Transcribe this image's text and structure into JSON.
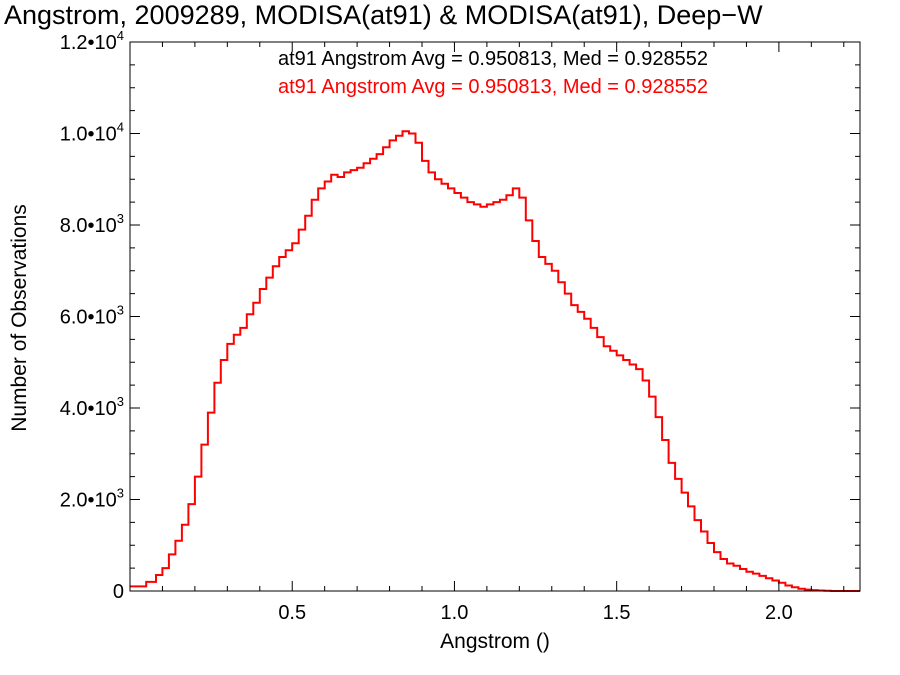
{
  "title": "Angstrom, 2009289, MODISA(at91) & MODISA(at91), Deep−W",
  "colors": {
    "series_black": "#000000",
    "series_red": "#ff0000",
    "axes": "#000000",
    "background": "#ffffff"
  },
  "chart_data": {
    "type": "line",
    "style": "step",
    "title": "Angstrom, 2009289, MODISA(at91) & MODISA(at91), Deep−W",
    "xlabel": "Angstrom ()",
    "ylabel": "Number of Observations",
    "xlim": [
      0.0,
      2.25
    ],
    "ylim": [
      0,
      12000
    ],
    "grid": false,
    "legend_placement": "top-right",
    "x_ticks": [
      {
        "value": 0.5,
        "label": "0.5"
      },
      {
        "value": 1.0,
        "label": "1.0"
      },
      {
        "value": 1.5,
        "label": "1.5"
      },
      {
        "value": 2.0,
        "label": "2.0"
      }
    ],
    "y_ticks": [
      {
        "value": 0,
        "mantissa": "0",
        "exp": ""
      },
      {
        "value": 2000,
        "mantissa": "2.0•10",
        "exp": "3"
      },
      {
        "value": 4000,
        "mantissa": "4.0•10",
        "exp": "3"
      },
      {
        "value": 6000,
        "mantissa": "6.0•10",
        "exp": "3"
      },
      {
        "value": 8000,
        "mantissa": "8.0•10",
        "exp": "3"
      },
      {
        "value": 10000,
        "mantissa": "1.0•10",
        "exp": "4"
      },
      {
        "value": 12000,
        "mantissa": "1.2•10",
        "exp": "4"
      }
    ],
    "legend": [
      {
        "label": "at91 Angstrom Avg = 0.950813, Med = 0.928552",
        "color": "#000000"
      },
      {
        "label": "at91 Angstrom Avg = 0.950813, Med = 0.928552",
        "color": "#ff0000"
      }
    ],
    "series": [
      {
        "name": "at91 Angstrom",
        "color": "#ff0000",
        "x": [
          0.0,
          0.05,
          0.08,
          0.1,
          0.12,
          0.14,
          0.16,
          0.18,
          0.2,
          0.22,
          0.24,
          0.26,
          0.28,
          0.3,
          0.32,
          0.34,
          0.36,
          0.38,
          0.4,
          0.42,
          0.44,
          0.46,
          0.48,
          0.5,
          0.52,
          0.54,
          0.56,
          0.58,
          0.6,
          0.62,
          0.64,
          0.66,
          0.68,
          0.7,
          0.72,
          0.74,
          0.76,
          0.78,
          0.8,
          0.82,
          0.84,
          0.86,
          0.88,
          0.9,
          0.92,
          0.94,
          0.96,
          0.98,
          1.0,
          1.02,
          1.04,
          1.06,
          1.08,
          1.1,
          1.12,
          1.14,
          1.16,
          1.18,
          1.2,
          1.22,
          1.24,
          1.26,
          1.28,
          1.3,
          1.32,
          1.34,
          1.36,
          1.38,
          1.4,
          1.42,
          1.44,
          1.46,
          1.48,
          1.5,
          1.52,
          1.54,
          1.56,
          1.58,
          1.6,
          1.62,
          1.64,
          1.66,
          1.68,
          1.7,
          1.72,
          1.74,
          1.76,
          1.78,
          1.8,
          1.82,
          1.84,
          1.86,
          1.88,
          1.9,
          1.92,
          1.94,
          1.96,
          1.98,
          2.0,
          2.02,
          2.04,
          2.06,
          2.08,
          2.1,
          2.12,
          2.14,
          2.16,
          2.18,
          2.2,
          2.25
        ],
        "values": [
          100,
          200,
          350,
          500,
          800,
          1100,
          1450,
          1900,
          2500,
          3200,
          3900,
          4550,
          5050,
          5400,
          5600,
          5750,
          6050,
          6300,
          6600,
          6850,
          7100,
          7300,
          7450,
          7600,
          7900,
          8200,
          8550,
          8800,
          8950,
          9100,
          9050,
          9150,
          9200,
          9250,
          9350,
          9450,
          9550,
          9700,
          9850,
          9950,
          10050,
          10000,
          9800,
          9400,
          9150,
          9000,
          8900,
          8800,
          8700,
          8600,
          8500,
          8450,
          8400,
          8450,
          8500,
          8550,
          8650,
          8800,
          8600,
          8100,
          7650,
          7300,
          7150,
          7000,
          6750,
          6500,
          6250,
          6100,
          5950,
          5750,
          5550,
          5350,
          5250,
          5150,
          5050,
          4950,
          4850,
          4600,
          4250,
          3800,
          3300,
          2800,
          2450,
          2150,
          1850,
          1550,
          1300,
          1050,
          850,
          700,
          600,
          550,
          480,
          420,
          380,
          330,
          280,
          230,
          180,
          120,
          80,
          50,
          30,
          20,
          10,
          5,
          0,
          0,
          0,
          0
        ]
      }
    ]
  }
}
